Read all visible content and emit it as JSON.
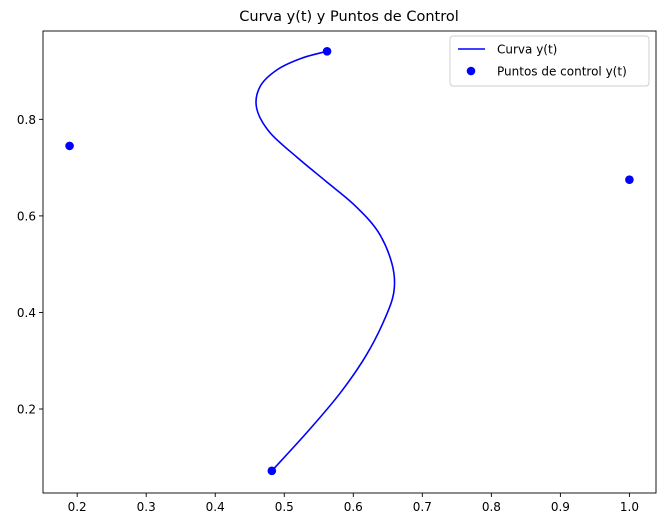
{
  "chart_data": {
    "type": "line",
    "title": "Curva y(t) y Puntos de Control",
    "xlabel": "",
    "ylabel": "",
    "xlim": [
      0.1505,
      1.0385
    ],
    "ylim": [
      0.026,
      0.983
    ],
    "grid": false,
    "legend_position": "top-right",
    "x_ticks": [
      0.2,
      0.3,
      0.4,
      0.5,
      0.6,
      0.7,
      0.8,
      0.9,
      1.0
    ],
    "x_tick_labels": [
      "0.2",
      "0.3",
      "0.4",
      "0.5",
      "0.6",
      "0.7",
      "0.8",
      "0.9",
      "1.0"
    ],
    "y_ticks": [
      0.2,
      0.4,
      0.6,
      0.8
    ],
    "y_tick_labels": [
      "0.2",
      "0.4",
      "0.6",
      "0.8"
    ],
    "series": [
      {
        "name": "Curva y(t)",
        "kind": "line",
        "color": "#0000ff",
        "x": [
          0.482,
          0.535,
          0.581,
          0.619,
          0.646,
          0.659,
          0.656,
          0.636,
          0.602,
          0.561,
          0.518,
          0.479,
          0.46,
          0.465,
          0.49,
          0.526,
          0.562
        ],
        "y": [
          0.072,
          0.155,
          0.233,
          0.312,
          0.388,
          0.445,
          0.501,
          0.567,
          0.622,
          0.671,
          0.722,
          0.773,
          0.823,
          0.868,
          0.903,
          0.927,
          0.941
        ]
      },
      {
        "name": "Puntos de control y(t)",
        "kind": "scatter",
        "color": "#0000ff",
        "x": [
          0.482,
          1.0,
          0.189,
          0.562
        ],
        "y": [
          0.072,
          0.675,
          0.745,
          0.941
        ]
      }
    ]
  }
}
